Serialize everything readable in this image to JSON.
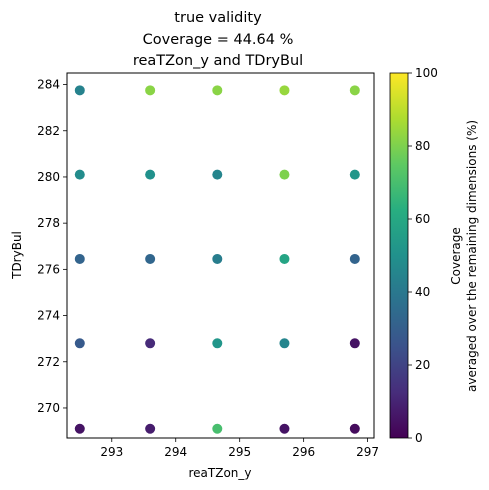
{
  "chart_data": {
    "type": "scatter",
    "title_lines": [
      "true validity",
      "Coverage = 44.64 %",
      "reaTZon_y and TDryBul"
    ],
    "xlabel": "reaTZon_y",
    "ylabel": "TDryBul",
    "xlim": [
      292.3,
      297.1
    ],
    "ylim": [
      268.7,
      284.5
    ],
    "xticks": [
      293,
      294,
      295,
      296,
      297
    ],
    "yticks": [
      270,
      272,
      274,
      276,
      278,
      280,
      282,
      284
    ],
    "colormap": "viridis",
    "colorbar": {
      "range": [
        0,
        100
      ],
      "ticks": [
        0,
        20,
        40,
        60,
        80,
        100
      ],
      "label_lines": [
        "Coverage",
        "averaged over the remaining dimensions (%)"
      ]
    },
    "points": [
      {
        "x": 292.5,
        "y": 269.1,
        "c": 5
      },
      {
        "x": 293.6,
        "y": 269.1,
        "c": 8
      },
      {
        "x": 294.65,
        "y": 269.1,
        "c": 70
      },
      {
        "x": 295.7,
        "y": 269.1,
        "c": 5
      },
      {
        "x": 296.8,
        "y": 269.1,
        "c": 3
      },
      {
        "x": 292.5,
        "y": 272.8,
        "c": 28
      },
      {
        "x": 293.6,
        "y": 272.8,
        "c": 12
      },
      {
        "x": 294.65,
        "y": 272.8,
        "c": 52
      },
      {
        "x": 295.7,
        "y": 272.8,
        "c": 45
      },
      {
        "x": 296.8,
        "y": 272.8,
        "c": 5
      },
      {
        "x": 292.5,
        "y": 276.45,
        "c": 32
      },
      {
        "x": 293.6,
        "y": 276.45,
        "c": 33
      },
      {
        "x": 294.65,
        "y": 276.45,
        "c": 42
      },
      {
        "x": 295.7,
        "y": 276.45,
        "c": 58
      },
      {
        "x": 296.8,
        "y": 276.45,
        "c": 32
      },
      {
        "x": 292.5,
        "y": 280.1,
        "c": 48
      },
      {
        "x": 293.6,
        "y": 280.1,
        "c": 50
      },
      {
        "x": 294.65,
        "y": 280.1,
        "c": 45
      },
      {
        "x": 295.7,
        "y": 280.1,
        "c": 80
      },
      {
        "x": 296.8,
        "y": 280.1,
        "c": 52
      },
      {
        "x": 292.5,
        "y": 283.75,
        "c": 44
      },
      {
        "x": 293.6,
        "y": 283.75,
        "c": 82
      },
      {
        "x": 294.65,
        "y": 283.75,
        "c": 82
      },
      {
        "x": 295.7,
        "y": 283.75,
        "c": 84
      },
      {
        "x": 296.8,
        "y": 283.75,
        "c": 82
      }
    ]
  }
}
